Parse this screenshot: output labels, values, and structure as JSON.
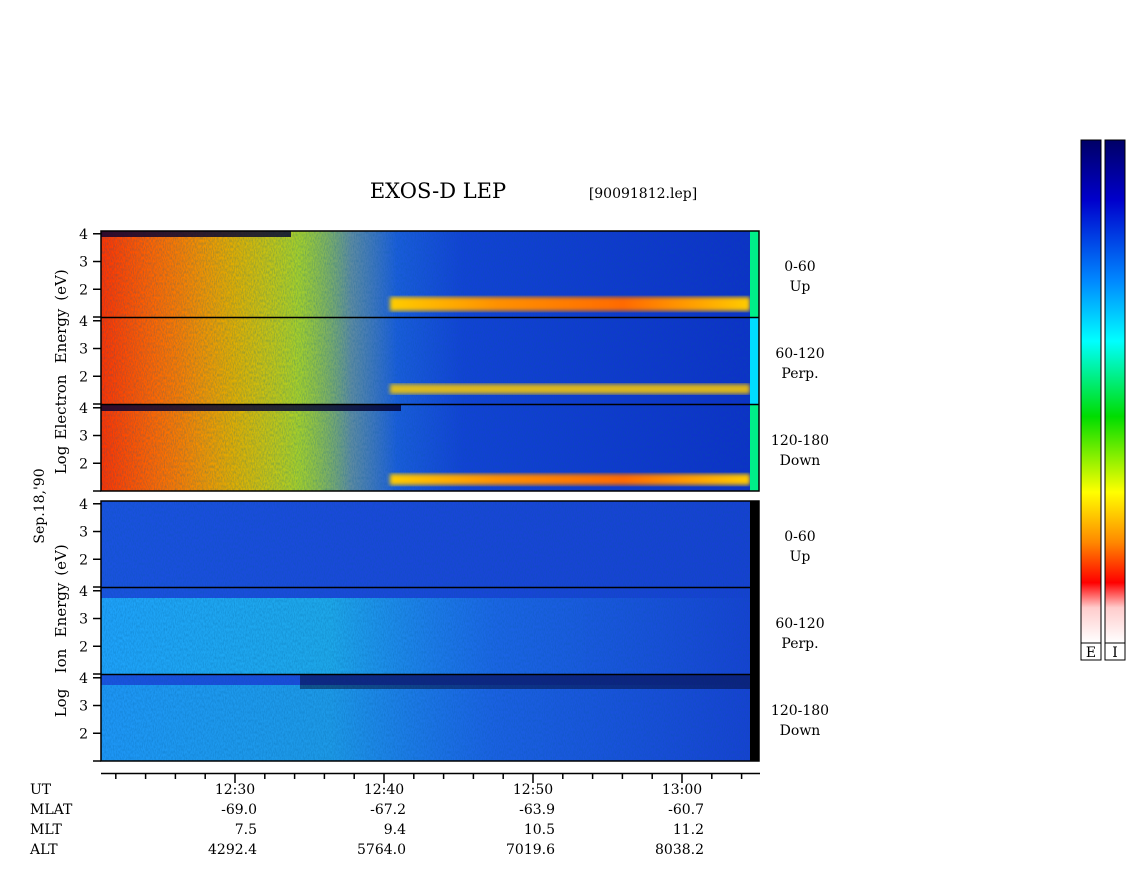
{
  "chart_data": {
    "type": "heatmap",
    "title": "EXOS-D LEP",
    "subtitle": "[90091812.lep]",
    "date_label": "Sep.18,'90",
    "electron_ylabel": [
      "Log",
      "Electron",
      "Energy",
      "(eV)"
    ],
    "ion_ylabel": [
      "Log",
      "Ion",
      "Energy",
      "(eV)"
    ],
    "y_ticks": [
      "4",
      "3",
      "2"
    ],
    "ylim": [
      1,
      4.1
    ],
    "electron_panels": [
      {
        "angle": "0-60",
        "direction": "Up"
      },
      {
        "angle": "60-120",
        "direction": "Perp."
      },
      {
        "angle": "120-180",
        "direction": "Down"
      }
    ],
    "ion_panels": [
      {
        "angle": "0-60",
        "direction": "Up"
      },
      {
        "angle": "60-120",
        "direction": "Perp."
      },
      {
        "angle": "120-180",
        "direction": "Down"
      }
    ],
    "colorbar_labels": [
      "E",
      "I"
    ],
    "ephemeris": {
      "row_labels": [
        "UT",
        "MLAT",
        "MLT",
        "ALT"
      ],
      "columns": [
        {
          "ut": "12:30",
          "mlat": "-69.0",
          "mlt": "7.5",
          "alt": "4292.4"
        },
        {
          "ut": "12:40",
          "mlat": "-67.2",
          "mlt": "9.4",
          "alt": "5764.0"
        },
        {
          "ut": "12:50",
          "mlat": "-63.9",
          "mlt": "10.5",
          "alt": "7019.6"
        },
        {
          "ut": "13:00",
          "mlat": "-60.7",
          "mlt": "11.2",
          "alt": "8038.2"
        }
      ]
    }
  },
  "colors": {
    "colormap": [
      "#ffffff",
      "#ffcccc",
      "#ff0000",
      "#ff8800",
      "#ffff00",
      "#00dd00",
      "#00ffff",
      "#0088ff",
      "#0000cc",
      "#000066"
    ]
  }
}
